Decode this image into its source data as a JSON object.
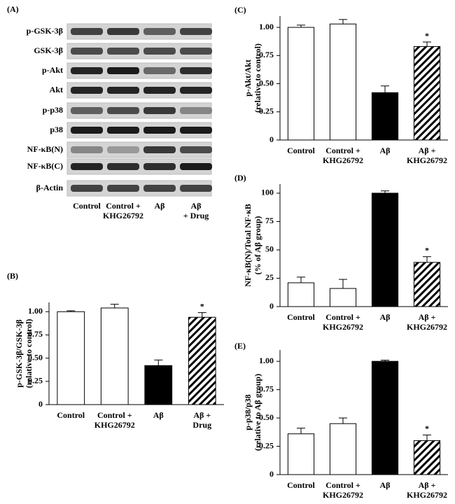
{
  "blot": {
    "panel": "(A)",
    "rows": [
      "p-GSK-3β",
      "GSK-3β",
      "p-Akt",
      "Akt",
      "p-p38",
      "p38",
      "NF-κB(N)",
      "NF-κB(C)",
      "β-Actin"
    ],
    "lanes": [
      [
        "Control"
      ],
      [
        "Control +",
        "KHG26792"
      ],
      [
        "Aβ"
      ],
      [
        "Aβ",
        "+ Drug"
      ]
    ]
  },
  "chart_data": [
    {
      "type": "bar",
      "panel": "(B)",
      "ylabel": [
        "p-GSK-3β/GSK-3β",
        "(relative to control)"
      ],
      "categories": [
        [
          "Control"
        ],
        [
          "Control +",
          "KHG26792"
        ],
        [
          "Aβ"
        ],
        [
          "Aβ +",
          "Drug"
        ]
      ],
      "values": [
        1.0,
        1.04,
        0.42,
        0.94
      ],
      "errors": [
        0.01,
        0.04,
        0.06,
        0.05
      ],
      "fills": [
        "white",
        "white",
        "black",
        "hatch"
      ],
      "significance": [
        null,
        null,
        null,
        "*"
      ],
      "ylim": [
        0,
        1.1
      ],
      "yticks": [
        0,
        0.25,
        {
          "value": 0.5,
          "label": "0.50"
        },
        0.75,
        {
          "value": 1,
          "label": "1.00"
        }
      ]
    },
    {
      "type": "bar",
      "panel": "(C)",
      "ylabel": [
        "p-Akt/Akt",
        "(relative to control)"
      ],
      "categories": [
        [
          "Control"
        ],
        [
          "Control +",
          "KHG26792"
        ],
        [
          "Aβ"
        ],
        [
          "Aβ +",
          "KHG26792"
        ]
      ],
      "values": [
        1.0,
        1.03,
        0.42,
        0.83
      ],
      "errors": [
        0.02,
        0.04,
        0.06,
        0.04
      ],
      "fills": [
        "white",
        "white",
        "black",
        "hatch"
      ],
      "significance": [
        null,
        null,
        null,
        "*"
      ],
      "ylim": [
        0,
        1.1
      ],
      "yticks": [
        0,
        0.25,
        {
          "value": 0.5,
          "label": "0.50"
        },
        0.75,
        {
          "value": 1,
          "label": "1.00"
        }
      ]
    },
    {
      "type": "bar",
      "panel": "(D)",
      "ylabel": [
        "NF-κB(N)/Total NF-κB",
        "(% of Aβ group)"
      ],
      "categories": [
        [
          "Control"
        ],
        [
          "Control +",
          "KHG26792"
        ],
        [
          "Aβ"
        ],
        [
          "Aβ +",
          "KHG26792"
        ]
      ],
      "values": [
        21,
        16,
        100,
        39
      ],
      "errors": [
        5,
        8,
        2,
        5
      ],
      "fills": [
        "white",
        "white",
        "black",
        "hatch"
      ],
      "significance": [
        null,
        null,
        null,
        "*"
      ],
      "ylim": [
        0,
        108
      ],
      "yticks": [
        0,
        25,
        50,
        75,
        100
      ]
    },
    {
      "type": "bar",
      "panel": "(E)",
      "ylabel": [
        "p-p38/p38",
        "(relative to Aβ group)"
      ],
      "categories": [
        [
          "Control"
        ],
        [
          "Control +",
          "KHG26792"
        ],
        [
          "Aβ"
        ],
        [
          "Aβ +",
          "KHG26792"
        ]
      ],
      "values": [
        0.36,
        0.45,
        1.0,
        0.3
      ],
      "errors": [
        0.05,
        0.05,
        0.01,
        0.05
      ],
      "fills": [
        "white",
        "white",
        "black",
        "hatch"
      ],
      "significance": [
        null,
        null,
        null,
        "*"
      ],
      "ylim": [
        0,
        1.1
      ],
      "yticks": [
        0,
        0.25,
        {
          "value": 0.5,
          "label": "0.50"
        },
        0.75,
        {
          "value": 1,
          "label": "1.00"
        }
      ]
    }
  ]
}
